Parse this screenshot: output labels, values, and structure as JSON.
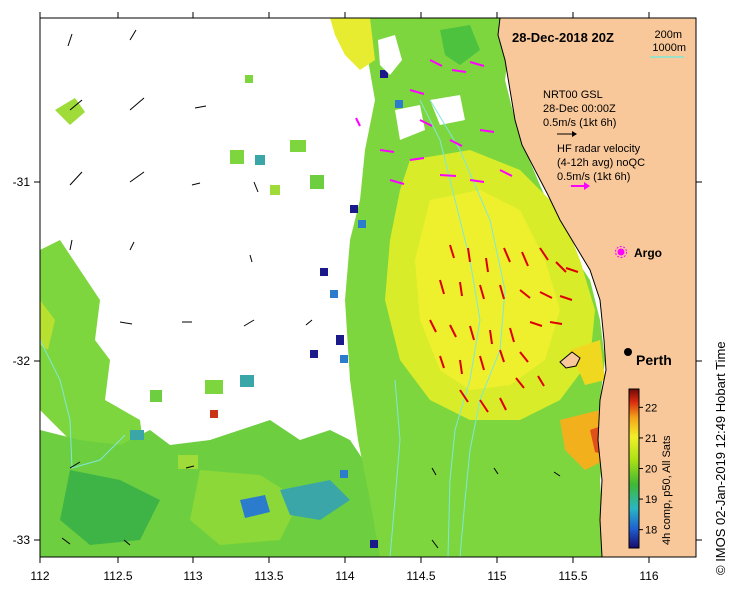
{
  "map": {
    "title": "28-Dec-2018 20Z",
    "depth_contours": [
      "200m",
      "1000m"
    ],
    "wind": {
      "source": "NRT00 GSL",
      "time": "28-Dec 00:00Z",
      "scale": "0.5m/s (1kt 6h)"
    },
    "radar": {
      "line1": "HF radar velocity",
      "line2": "(4-12h avg) noQC",
      "scale": "0.5m/s (1kt 6h)"
    },
    "argo_label": "Argo",
    "city_label": "Perth",
    "colorbar": {
      "ticks": [
        "22",
        "21",
        "20",
        "19",
        "18"
      ],
      "label": "4h comp, p50, All Sats",
      "range": [
        17.4,
        22.6
      ]
    },
    "credit": "© IMOS 02-Jan-2019 12:49 Hobart Time",
    "x_ticks": [
      "112",
      "112.5",
      "113",
      "113.5",
      "114",
      "114.5",
      "115",
      "115.5",
      "116"
    ],
    "y_ticks": [
      "-31",
      "-32",
      "-33"
    ],
    "colors": {
      "land": "#f9c89a",
      "radar_arrow": "#ff00ff",
      "current_arrow": "#dd0000",
      "contour": "#7fe8d8"
    }
  }
}
